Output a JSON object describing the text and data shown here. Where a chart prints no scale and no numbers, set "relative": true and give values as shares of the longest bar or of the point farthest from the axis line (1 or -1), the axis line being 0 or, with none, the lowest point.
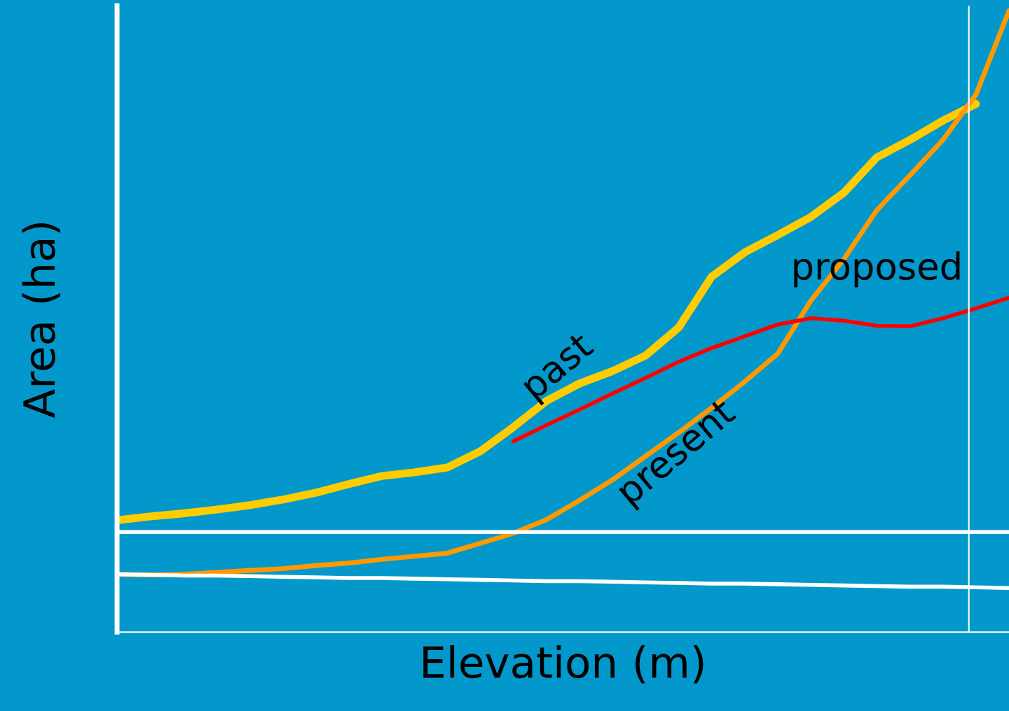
{
  "chart_data": {
    "type": "line",
    "relative": true,
    "xlabel": "Elevation (m)",
    "ylabel": "Area (ha)",
    "categories": [
      null,
      null,
      null,
      null,
      null,
      null,
      null,
      null,
      null,
      null,
      null,
      null,
      null,
      null,
      null,
      null,
      null,
      null,
      null,
      null,
      null,
      null,
      null,
      null,
      null,
      null,
      null,
      null
    ],
    "series": [
      {
        "name": "past",
        "color": "#ffcc00",
        "values": [
          0.18,
          0.186,
          0.191,
          0.197,
          0.204,
          0.213,
          0.224,
          0.238,
          0.251,
          0.257,
          0.265,
          0.291,
          0.33,
          0.372,
          0.4,
          0.42,
          0.445,
          0.49,
          0.572,
          0.611,
          0.639,
          0.668,
          0.707,
          0.764,
          0.792,
          0.823,
          0.85,
          null
        ]
      },
      {
        "name": "present",
        "color": "#ff9900",
        "values": [
          0.093,
          0.092,
          0.093,
          0.096,
          0.099,
          0.102,
          0.107,
          0.111,
          0.117,
          0.122,
          0.127,
          0.143,
          0.159,
          0.181,
          0.212,
          0.245,
          0.283,
          0.321,
          0.361,
          0.403,
          0.448,
          0.533,
          0.6,
          0.679,
          0.735,
          0.792,
          0.865,
          1.0
        ]
      },
      {
        "name": "proposed",
        "color": "#ff0000",
        "values": [
          null,
          null,
          null,
          null,
          null,
          null,
          null,
          null,
          null,
          null,
          null,
          null,
          0.307,
          0.333,
          0.358,
          0.384,
          0.409,
          0.435,
          0.457,
          0.476,
          0.495,
          0.505,
          0.501,
          0.493,
          0.492,
          0.505,
          0.521,
          0.538
        ]
      },
      {
        "color": "#ffffff",
        "values": [
          0.093,
          0.092,
          0.091,
          0.091,
          0.09,
          0.089,
          0.088,
          0.087,
          0.087,
          0.086,
          0.085,
          0.084,
          0.083,
          0.082,
          0.082,
          0.081,
          0.08,
          0.079,
          0.078,
          0.078,
          0.077,
          0.076,
          0.075,
          0.074,
          0.073,
          0.073,
          0.072,
          0.071
        ]
      }
    ],
    "ref_lines": [
      {
        "axis": "y",
        "value": 0.161,
        "color": "#ffffff"
      }
    ],
    "legend": false,
    "grid": false
  }
}
